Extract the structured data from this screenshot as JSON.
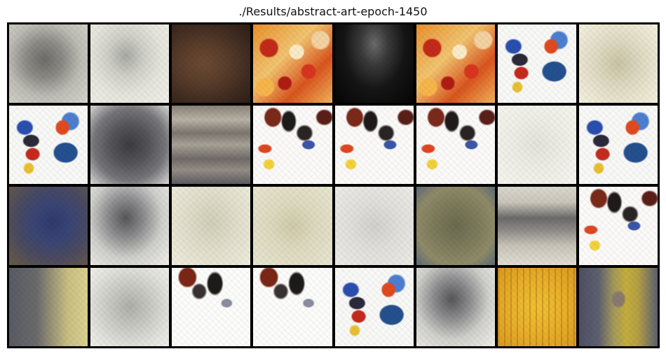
{
  "figure": {
    "title": "./Results/abstract-art-epoch-1450"
  },
  "grid": {
    "rows": 4,
    "columns": 8,
    "tiles": [
      {
        "style": "gray-blob"
      },
      {
        "style": "light-sketch"
      },
      {
        "style": "brown"
      },
      {
        "style": "colorful-red"
      },
      {
        "style": "black"
      },
      {
        "style": "colorful-red"
      },
      {
        "style": "white-blue"
      },
      {
        "style": "cream"
      },
      {
        "style": "white-blue"
      },
      {
        "style": "dark-gray"
      },
      {
        "style": "stripes"
      },
      {
        "style": "white-sketch"
      },
      {
        "style": "white-sketch"
      },
      {
        "style": "white-sketch"
      },
      {
        "style": "offwhite"
      },
      {
        "style": "white-blue"
      },
      {
        "style": "navy"
      },
      {
        "style": "gray-smudge"
      },
      {
        "style": "pale"
      },
      {
        "style": "pale-yellow"
      },
      {
        "style": "silver"
      },
      {
        "style": "olive"
      },
      {
        "style": "gray-band"
      },
      {
        "style": "white-sketch"
      },
      {
        "style": "khaki"
      },
      {
        "style": "gray-sketch2"
      },
      {
        "style": "white-sketch2"
      },
      {
        "style": "white-sketch2"
      },
      {
        "style": "white-blue"
      },
      {
        "style": "gray-smudge"
      },
      {
        "style": "gold"
      },
      {
        "style": "slate-yellow"
      }
    ]
  }
}
